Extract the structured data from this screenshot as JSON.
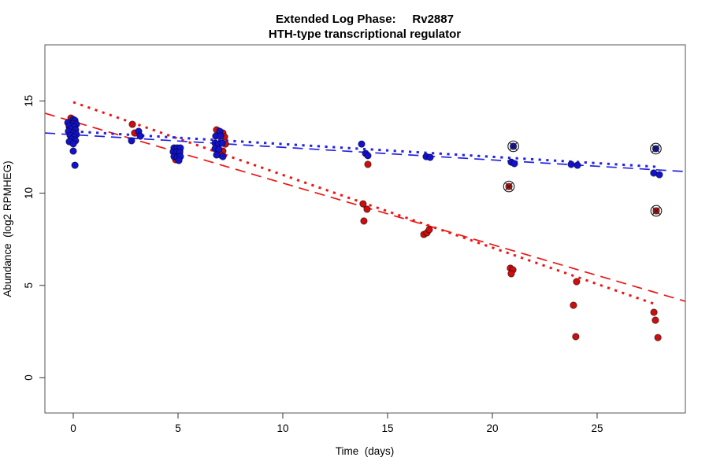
{
  "title": {
    "line1": "Extended Log Phase:     Rv2887",
    "line2": "HTH-type transcriptional regulator"
  },
  "chart_data": {
    "type": "scatter",
    "xlabel": "Time  (days)",
    "ylabel": "Abundance  (log2 RPMHEG)",
    "x_ticks": [
      0,
      5,
      10,
      15,
      20,
      25
    ],
    "y_ticks": [
      0,
      5,
      10,
      15
    ],
    "xlim": [
      -1.35,
      29.2
    ],
    "ylim": [
      -1.9,
      18.0
    ],
    "grid": "off",
    "legend": "none",
    "colors": {
      "red_points": "#cc0e0e",
      "blue_points": "#1212cc",
      "red_line": "#f01414",
      "blue_line": "#2323e0",
      "marker_outline": "#1a1a1a",
      "box": "#555555"
    },
    "series": [
      {
        "name": "red-condition",
        "color": "#cc0e0e",
        "points": [
          [
            -0.11,
            14.07
          ],
          [
            0.08,
            13.82
          ],
          [
            -0.19,
            13.6
          ],
          [
            0.0,
            13.3
          ],
          [
            -0.04,
            12.96
          ],
          [
            2.82,
            13.73
          ],
          [
            2.93,
            13.26
          ],
          [
            4.89,
            12.37
          ],
          [
            5.08,
            12.28
          ],
          [
            4.89,
            11.81
          ],
          [
            6.84,
            13.43
          ],
          [
            7.14,
            13.26
          ],
          [
            7.22,
            13.05
          ],
          [
            7.26,
            12.66
          ],
          [
            7.14,
            12.28
          ],
          [
            7.03,
            12.07
          ],
          [
            14.06,
            11.56
          ],
          [
            13.83,
            9.42
          ],
          [
            14.02,
            9.13
          ],
          [
            13.87,
            8.49
          ],
          [
            16.73,
            7.76
          ],
          [
            16.88,
            7.85
          ],
          [
            16.99,
            8.02
          ],
          [
            20.86,
            5.93
          ],
          [
            20.98,
            5.84
          ],
          [
            20.9,
            5.63
          ],
          [
            24.02,
            5.2
          ],
          [
            23.87,
            3.92
          ],
          [
            23.98,
            2.22
          ],
          [
            27.71,
            3.54
          ],
          [
            27.78,
            3.11
          ],
          [
            27.9,
            2.17
          ]
        ]
      },
      {
        "name": "blue-condition",
        "color": "#1212cc",
        "points": [
          [
            0.0,
            13.99
          ],
          [
            0.08,
            13.94
          ],
          [
            -0.26,
            13.82
          ],
          [
            0.0,
            13.77
          ],
          [
            0.15,
            13.73
          ],
          [
            -0.19,
            13.65
          ],
          [
            0.04,
            13.6
          ],
          [
            -0.11,
            13.48
          ],
          [
            0.11,
            13.43
          ],
          [
            -0.23,
            13.35
          ],
          [
            0.0,
            13.26
          ],
          [
            0.15,
            13.18
          ],
          [
            -0.15,
            13.13
          ],
          [
            0.04,
            13.05
          ],
          [
            -0.08,
            12.92
          ],
          [
            0.11,
            12.84
          ],
          [
            -0.19,
            12.79
          ],
          [
            0.0,
            12.67
          ],
          [
            0.0,
            12.28
          ],
          [
            0.08,
            11.51
          ],
          [
            3.12,
            13.35
          ],
          [
            3.2,
            13.09
          ],
          [
            2.78,
            12.84
          ],
          [
            4.81,
            12.45
          ],
          [
            4.96,
            12.45
          ],
          [
            5.11,
            12.45
          ],
          [
            4.77,
            12.24
          ],
          [
            4.92,
            12.2
          ],
          [
            5.08,
            12.2
          ],
          [
            4.81,
            11.98
          ],
          [
            4.96,
            11.94
          ],
          [
            5.11,
            11.98
          ],
          [
            5.04,
            11.77
          ],
          [
            6.99,
            13.35
          ],
          [
            6.8,
            13.09
          ],
          [
            7.03,
            13.09
          ],
          [
            6.77,
            12.71
          ],
          [
            6.92,
            12.66
          ],
          [
            7.11,
            12.71
          ],
          [
            6.77,
            12.41
          ],
          [
            6.95,
            12.37
          ],
          [
            6.84,
            12.07
          ],
          [
            7.14,
            11.98
          ],
          [
            13.76,
            12.66
          ],
          [
            13.95,
            12.15
          ],
          [
            14.06,
            12.03
          ],
          [
            16.84,
            11.98
          ],
          [
            17.03,
            11.94
          ],
          [
            20.9,
            11.68
          ],
          [
            21.05,
            11.6
          ],
          [
            23.76,
            11.56
          ],
          [
            24.06,
            11.51
          ],
          [
            27.7,
            11.09
          ],
          [
            27.97,
            11.0
          ]
        ]
      }
    ],
    "outlier_points": [
      {
        "series": "blue-condition",
        "color": "#1212cc",
        "x": 21.0,
        "y": 12.54
      },
      {
        "series": "blue-condition",
        "color": "#1212cc",
        "x": 27.8,
        "y": 12.41
      },
      {
        "series": "red-condition",
        "color": "#cc0e0e",
        "x": 20.79,
        "y": 10.36
      },
      {
        "series": "red-condition",
        "color": "#cc0e0e",
        "x": 27.82,
        "y": 9.04
      }
    ],
    "x_marker": {
      "x": -0.08,
      "y": 12.96
    },
    "trend_lines": [
      {
        "name": "red-fit-dashed",
        "color": "#f01414",
        "style": "longdash",
        "x1": -1.35,
        "y1": 14.33,
        "x2": 29.2,
        "y2": 4.14
      },
      {
        "name": "red-fit-dotted",
        "color": "#f01414",
        "style": "dotted",
        "x1": 0.0,
        "y1": 14.93,
        "x2": 27.8,
        "y2": 3.97
      },
      {
        "name": "blue-fit-dashed",
        "color": "#2323e0",
        "style": "longdash",
        "x1": -1.35,
        "y1": 13.26,
        "x2": 29.2,
        "y2": 11.17
      },
      {
        "name": "blue-fit-dotted",
        "color": "#2323e0",
        "style": "dotted",
        "x1": 0.0,
        "y1": 13.35,
        "x2": 27.8,
        "y2": 11.43
      }
    ]
  }
}
